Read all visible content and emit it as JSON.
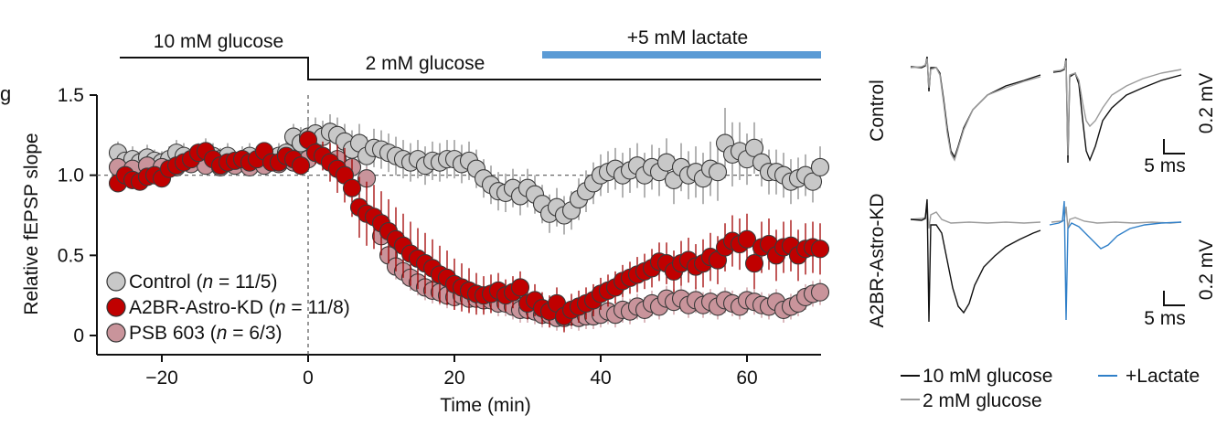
{
  "panel_letter": "g",
  "conditions": {
    "baseline": "10 mM glucose",
    "low": "2 mM glucose",
    "lactate": "+5 mM lactate"
  },
  "colors": {
    "control": "#c8c8c8",
    "a2br": "#c00000",
    "psb": "#c9949b",
    "lactate": "#5b9bd5",
    "trace_black": "#111111",
    "trace_grey": "#9a9a9a",
    "trace_blue": "#2f7fc8"
  },
  "chart_data": {
    "type": "scatter",
    "title": "",
    "xlabel": "Time (min)",
    "ylabel": "Relative fEPSP slope",
    "xlim": [
      -28,
      70
    ],
    "ylim": [
      -0.05,
      1.55
    ],
    "xticks": [
      -20,
      0,
      20,
      40,
      60
    ],
    "yticks": [
      0,
      0.5,
      1.0,
      1.5
    ],
    "xtick_labels": [
      "−20",
      "0",
      "20",
      "40",
      "60"
    ],
    "ytick_labels": [
      "0",
      "0.5",
      "1.0",
      "1.5"
    ],
    "reference_line_y": 1.0,
    "reference_line_x": 0,
    "grid": false,
    "legend_position": "bottom-left",
    "legend": [
      {
        "key": "control",
        "label": "Control (",
        "n": "n",
        "value": " = 11/5)"
      },
      {
        "key": "a2br",
        "label": "A2BR-Astro-KD (",
        "n": "n",
        "value": " = 11/8)"
      },
      {
        "key": "psb",
        "label": "PSB 603 (",
        "n": "n",
        "value": " = 6/3)"
      }
    ],
    "series": [
      {
        "name": "Control",
        "key": "control",
        "x": [
          -26,
          -25,
          -24,
          -23,
          -22,
          -21,
          -20,
          -19,
          -18,
          -17,
          -16,
          -15,
          -14,
          -13,
          -12,
          -11,
          -10,
          -9,
          -8,
          -7,
          -6,
          -5,
          -4,
          -3,
          -2,
          -1,
          0,
          1,
          2,
          3,
          4,
          5,
          6,
          7,
          8,
          9,
          10,
          11,
          12,
          13,
          14,
          15,
          16,
          17,
          18,
          19,
          20,
          21,
          22,
          23,
          24,
          25,
          26,
          27,
          28,
          29,
          30,
          31,
          32,
          33,
          34,
          35,
          36,
          37,
          38,
          39,
          40,
          41,
          42,
          43,
          44,
          45,
          46,
          47,
          48,
          49,
          50,
          51,
          52,
          53,
          54,
          55,
          56,
          57,
          58,
          59,
          60,
          61,
          62,
          63,
          64,
          65,
          66,
          67,
          68,
          69,
          70
        ],
        "y": [
          1.14,
          1.09,
          1.1,
          1.08,
          1.11,
          1.09,
          1.08,
          1.1,
          1.14,
          1.12,
          1.1,
          1.12,
          1.15,
          1.12,
          1.1,
          1.12,
          1.08,
          1.1,
          1.12,
          1.09,
          1.11,
          1.1,
          1.12,
          1.14,
          1.24,
          1.2,
          1.24,
          1.26,
          1.24,
          1.27,
          1.25,
          1.21,
          1.16,
          1.2,
          1.12,
          1.17,
          1.16,
          1.14,
          1.12,
          1.1,
          1.08,
          1.1,
          1.06,
          1.09,
          1.08,
          1.1,
          1.1,
          1.07,
          1.09,
          1.04,
          0.98,
          0.94,
          0.9,
          0.89,
          0.92,
          0.87,
          0.92,
          0.88,
          0.82,
          0.76,
          0.8,
          0.75,
          0.78,
          0.85,
          0.9,
          0.95,
          1.0,
          1.02,
          1.04,
          1.0,
          1.03,
          1.06,
          1.0,
          1.05,
          1.02,
          1.08,
          0.97,
          1.05,
          1.0,
          1.02,
          0.98,
          1.04,
          1.02,
          1.2,
          1.13,
          1.15,
          1.1,
          1.17,
          1.08,
          1.02,
          1.02,
          1.0,
          0.96,
          0.98,
          1.0,
          0.96,
          1.05
        ],
        "err": [
          0.07,
          0.08,
          0.08,
          0.07,
          0.08,
          0.07,
          0.07,
          0.08,
          0.08,
          0.08,
          0.07,
          0.08,
          0.08,
          0.08,
          0.07,
          0.08,
          0.07,
          0.08,
          0.08,
          0.07,
          0.08,
          0.07,
          0.08,
          0.09,
          0.08,
          0.1,
          0.1,
          0.1,
          0.1,
          0.11,
          0.11,
          0.11,
          0.12,
          0.12,
          0.12,
          0.12,
          0.12,
          0.12,
          0.12,
          0.12,
          0.12,
          0.12,
          0.12,
          0.12,
          0.12,
          0.12,
          0.12,
          0.12,
          0.12,
          0.12,
          0.12,
          0.12,
          0.12,
          0.12,
          0.12,
          0.12,
          0.12,
          0.12,
          0.12,
          0.12,
          0.12,
          0.12,
          0.12,
          0.13,
          0.13,
          0.13,
          0.13,
          0.13,
          0.13,
          0.14,
          0.14,
          0.14,
          0.14,
          0.14,
          0.15,
          0.15,
          0.15,
          0.15,
          0.15,
          0.16,
          0.16,
          0.17,
          0.18,
          0.22,
          0.2,
          0.18,
          0.16,
          0.16,
          0.15,
          0.14,
          0.14,
          0.14,
          0.14,
          0.13,
          0.13,
          0.13,
          0.13
        ]
      },
      {
        "name": "PSB 603",
        "key": "psb",
        "x": [
          -26,
          -24,
          -22,
          -20,
          -18,
          -16,
          -14,
          -12,
          -10,
          -8,
          -6,
          -4,
          -2,
          0,
          2,
          4,
          6,
          8,
          10,
          11,
          12,
          13,
          14,
          15,
          16,
          17,
          18,
          19,
          20,
          21,
          22,
          23,
          24,
          25,
          26,
          27,
          28,
          29,
          30,
          31,
          32,
          33,
          34,
          35,
          36,
          37,
          38,
          39,
          40,
          41,
          42,
          43,
          44,
          45,
          46,
          47,
          48,
          49,
          50,
          51,
          52,
          53,
          54,
          55,
          56,
          57,
          58,
          59,
          60,
          61,
          62,
          63,
          64,
          65,
          66,
          67,
          68,
          69,
          70
        ],
        "y": [
          1.05,
          1.04,
          1.06,
          1.05,
          1.05,
          1.07,
          1.06,
          1.05,
          1.06,
          1.05,
          1.06,
          1.07,
          1.08,
          1.1,
          1.12,
          1.1,
          1.05,
          0.98,
          0.62,
          0.5,
          0.43,
          0.4,
          0.36,
          0.33,
          0.3,
          0.28,
          0.27,
          0.25,
          0.24,
          0.25,
          0.23,
          0.23,
          0.22,
          0.22,
          0.2,
          0.2,
          0.18,
          0.16,
          0.16,
          0.15,
          0.13,
          0.13,
          0.11,
          0.11,
          0.12,
          0.11,
          0.12,
          0.12,
          0.13,
          0.15,
          0.13,
          0.16,
          0.15,
          0.18,
          0.16,
          0.2,
          0.18,
          0.23,
          0.21,
          0.23,
          0.19,
          0.22,
          0.19,
          0.21,
          0.18,
          0.22,
          0.2,
          0.18,
          0.22,
          0.21,
          0.19,
          0.18,
          0.21,
          0.16,
          0.18,
          0.2,
          0.24,
          0.26,
          0.27
        ],
        "err": [
          0.04,
          0.04,
          0.04,
          0.04,
          0.04,
          0.04,
          0.04,
          0.04,
          0.04,
          0.04,
          0.04,
          0.04,
          0.04,
          0.05,
          0.05,
          0.05,
          0.06,
          0.07,
          0.08,
          0.08,
          0.08,
          0.08,
          0.08,
          0.08,
          0.08,
          0.08,
          0.08,
          0.08,
          0.08,
          0.08,
          0.08,
          0.08,
          0.08,
          0.08,
          0.08,
          0.08,
          0.08,
          0.08,
          0.08,
          0.08,
          0.08,
          0.08,
          0.08,
          0.08,
          0.08,
          0.08,
          0.08,
          0.08,
          0.08,
          0.08,
          0.08,
          0.08,
          0.08,
          0.08,
          0.08,
          0.08,
          0.08,
          0.08,
          0.08,
          0.08,
          0.08,
          0.08,
          0.08,
          0.08,
          0.08,
          0.08,
          0.08,
          0.08,
          0.08,
          0.08,
          0.08,
          0.08,
          0.08,
          0.08,
          0.08,
          0.08,
          0.08,
          0.08,
          0.08
        ]
      },
      {
        "name": "A2BR-Astro-KD",
        "key": "a2br",
        "x": [
          -26,
          -25,
          -24,
          -23,
          -22,
          -21,
          -20,
          -19,
          -18,
          -17,
          -16,
          -15,
          -14,
          -13,
          -12,
          -11,
          -10,
          -9,
          -8,
          -7,
          -6,
          -5,
          -4,
          -3,
          -2,
          -1,
          0,
          1,
          2,
          3,
          4,
          5,
          6,
          7,
          8,
          9,
          10,
          11,
          12,
          13,
          14,
          15,
          16,
          17,
          18,
          19,
          20,
          21,
          22,
          23,
          24,
          25,
          26,
          27,
          28,
          29,
          30,
          31,
          32,
          33,
          34,
          35,
          36,
          37,
          38,
          39,
          40,
          41,
          42,
          43,
          44,
          45,
          46,
          47,
          48,
          49,
          50,
          51,
          52,
          53,
          54,
          55,
          56,
          57,
          58,
          59,
          60,
          61,
          62,
          63,
          64,
          65,
          66,
          67,
          68,
          69,
          70
        ],
        "y": [
          0.95,
          1.0,
          0.97,
          0.96,
          0.99,
          1.0,
          0.98,
          1.04,
          1.06,
          1.08,
          1.1,
          1.14,
          1.15,
          1.1,
          1.06,
          1.08,
          1.09,
          1.1,
          1.08,
          1.1,
          1.15,
          1.08,
          1.08,
          1.12,
          1.1,
          1.06,
          1.22,
          1.14,
          1.12,
          1.08,
          1.04,
          1.0,
          0.92,
          0.8,
          0.76,
          0.74,
          0.7,
          0.65,
          0.6,
          0.56,
          0.51,
          0.48,
          0.45,
          0.42,
          0.38,
          0.36,
          0.32,
          0.3,
          0.28,
          0.26,
          0.25,
          0.26,
          0.28,
          0.25,
          0.27,
          0.3,
          0.2,
          0.22,
          0.17,
          0.15,
          0.2,
          0.12,
          0.16,
          0.18,
          0.2,
          0.22,
          0.26,
          0.28,
          0.3,
          0.34,
          0.36,
          0.38,
          0.4,
          0.42,
          0.46,
          0.45,
          0.4,
          0.45,
          0.47,
          0.43,
          0.45,
          0.49,
          0.47,
          0.55,
          0.59,
          0.57,
          0.6,
          0.45,
          0.55,
          0.57,
          0.5,
          0.55,
          0.56,
          0.5,
          0.54,
          0.55,
          0.54
        ],
        "err": [
          0.05,
          0.05,
          0.05,
          0.05,
          0.05,
          0.05,
          0.05,
          0.05,
          0.05,
          0.05,
          0.05,
          0.05,
          0.05,
          0.05,
          0.05,
          0.05,
          0.05,
          0.05,
          0.05,
          0.05,
          0.05,
          0.05,
          0.05,
          0.05,
          0.05,
          0.06,
          0.06,
          0.07,
          0.09,
          0.12,
          0.15,
          0.17,
          0.18,
          0.19,
          0.2,
          0.2,
          0.2,
          0.2,
          0.2,
          0.2,
          0.2,
          0.19,
          0.19,
          0.18,
          0.18,
          0.17,
          0.16,
          0.15,
          0.14,
          0.13,
          0.12,
          0.12,
          0.11,
          0.1,
          0.1,
          0.1,
          0.1,
          0.1,
          0.1,
          0.1,
          0.1,
          0.1,
          0.1,
          0.1,
          0.1,
          0.1,
          0.1,
          0.1,
          0.1,
          0.1,
          0.1,
          0.11,
          0.11,
          0.12,
          0.12,
          0.13,
          0.13,
          0.14,
          0.14,
          0.14,
          0.15,
          0.15,
          0.15,
          0.15,
          0.16,
          0.16,
          0.16,
          0.16,
          0.16,
          0.16,
          0.16,
          0.16,
          0.16,
          0.16,
          0.16,
          0.16,
          0.16
        ]
      }
    ]
  },
  "traces": {
    "row_labels": [
      "Control",
      "A2BR-Astro-KD"
    ],
    "scale_voltage": "0.2 mV",
    "scale_time": "5 ms",
    "legend": [
      {
        "key": "trace_black",
        "label": "10 mM glucose"
      },
      {
        "key": "trace_grey",
        "label": "2 mM glucose"
      },
      {
        "key": "trace_blue",
        "label": "+Lactate"
      }
    ]
  }
}
